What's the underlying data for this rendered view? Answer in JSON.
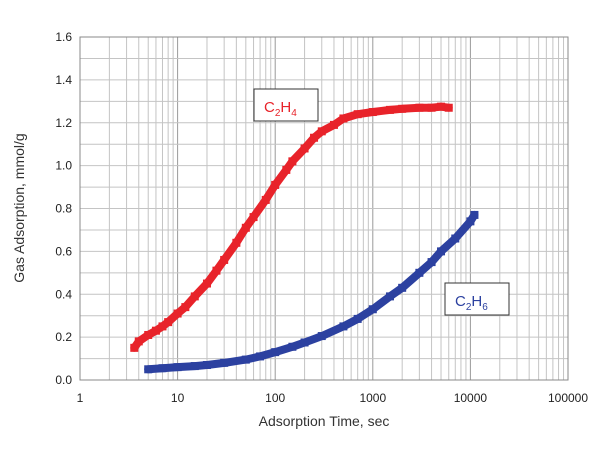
{
  "chart_data": {
    "type": "scatter",
    "title": "",
    "xlabel": "Adsorption Time, sec",
    "ylabel": "Gas Adsorption, mmol/g",
    "xscale": "log",
    "xlim": [
      1,
      100000
    ],
    "ylim": [
      0,
      1.6
    ],
    "grid": true,
    "x_ticks": [
      1,
      10,
      100,
      1000,
      10000,
      100000
    ],
    "x_tick_labels": [
      "1",
      "10",
      "100",
      "1000",
      "10000",
      "100000"
    ],
    "y_ticks": [
      0.0,
      0.2,
      0.4,
      0.6,
      0.8,
      1.0,
      1.2,
      1.4,
      1.6
    ],
    "y_tick_labels": [
      "0.0",
      "0.2",
      "0.4",
      "0.6",
      "0.8",
      "1.0",
      "1.2",
      "1.4",
      "1.6"
    ],
    "series": [
      {
        "name": "C2H4",
        "label_main": "C",
        "label_sub1": "2",
        "label_mid": "H",
        "label_sub2": "4",
        "color": "#e8232a",
        "x": [
          3.6,
          4,
          5,
          6,
          7,
          8,
          10,
          12,
          15,
          20,
          25,
          30,
          40,
          50,
          60,
          80,
          100,
          130,
          150,
          200,
          250,
          300,
          400,
          500,
          700,
          1000,
          1500,
          2000,
          3000,
          4000,
          5000,
          6000
        ],
        "y": [
          0.15,
          0.18,
          0.21,
          0.23,
          0.25,
          0.27,
          0.31,
          0.34,
          0.39,
          0.45,
          0.51,
          0.56,
          0.64,
          0.71,
          0.76,
          0.84,
          0.91,
          0.98,
          1.02,
          1.08,
          1.13,
          1.16,
          1.19,
          1.22,
          1.24,
          1.25,
          1.26,
          1.265,
          1.27,
          1.27,
          1.275,
          1.27
        ]
      },
      {
        "name": "C2H6",
        "label_main": "C",
        "label_sub1": "2",
        "label_mid": "H",
        "label_sub2": "6",
        "color": "#2c41a0",
        "x": [
          5,
          7,
          10,
          15,
          20,
          30,
          50,
          70,
          100,
          150,
          200,
          300,
          500,
          700,
          1000,
          1500,
          2000,
          3000,
          4000,
          5000,
          7000,
          10000,
          11000
        ],
        "y": [
          0.05,
          0.055,
          0.06,
          0.065,
          0.07,
          0.08,
          0.095,
          0.11,
          0.13,
          0.155,
          0.175,
          0.205,
          0.25,
          0.285,
          0.33,
          0.39,
          0.43,
          0.5,
          0.55,
          0.6,
          0.66,
          0.74,
          0.77
        ]
      }
    ]
  }
}
